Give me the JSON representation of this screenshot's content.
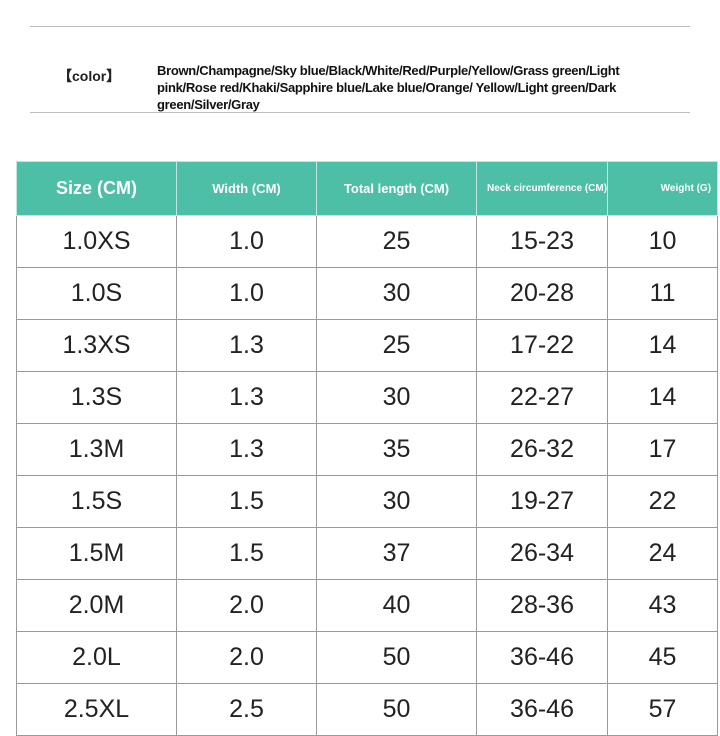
{
  "color": {
    "label": "【color】",
    "text": "Brown/Champagne/Sky blue/Black/White/Red/Purple/Yellow/Grass green/Light pink/Rose red/Khaki/Sapphire blue/Lake blue/Orange/ Yellow/Light green/Dark green/Silver/Gray"
  },
  "table": {
    "headers": [
      "Size (CM)",
      "Width (CM)",
      "Total length (CM)",
      "Neck circumference (CM)",
      "Weight (G)"
    ],
    "header_color": "#4cbfa6",
    "rows": [
      [
        "1.0XS",
        "1.0",
        "25",
        "15-23",
        "10"
      ],
      [
        "1.0S",
        "1.0",
        "30",
        "20-28",
        "11"
      ],
      [
        "1.3XS",
        "1.3",
        "25",
        "17-22",
        "14"
      ],
      [
        "1.3S",
        "1.3",
        "30",
        "22-27",
        "14"
      ],
      [
        "1.3M",
        "1.3",
        "35",
        "26-32",
        "17"
      ],
      [
        "1.5S",
        "1.5",
        "30",
        "19-27",
        "22"
      ],
      [
        "1.5M",
        "1.5",
        "37",
        "26-34",
        "24"
      ],
      [
        "2.0M",
        "2.0",
        "40",
        "28-36",
        "43"
      ],
      [
        "2.0L",
        "2.0",
        "50",
        "36-46",
        "45"
      ],
      [
        "2.5XL",
        "2.5",
        "50",
        "36-46",
        "57"
      ]
    ]
  }
}
